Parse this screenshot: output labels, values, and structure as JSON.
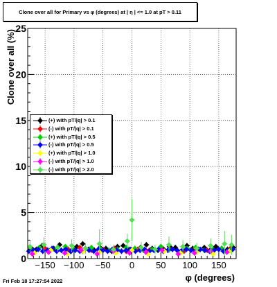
{
  "title": "Clone  over all for Primary vs φ (degrees) at |  η | <= 1.0 at pT > 0.11",
  "timestamp": "Fri Feb 18 17:27:54 2022",
  "chart_data": {
    "type": "scatter",
    "title": "Clone  over all for Primary vs φ (degrees) at |  η | <= 1.0 at pT > 0.11",
    "xlabel": "φ (degrees)",
    "ylabel": "Clone  over all (%)",
    "xlim": [
      -180,
      180
    ],
    "ylim": [
      0,
      25
    ],
    "x_ticks": [
      -150,
      -100,
      -50,
      0,
      50,
      100,
      150
    ],
    "x_tick_labels": [
      "−150",
      "−100",
      "−50",
      "0",
      "50",
      "100",
      "150"
    ],
    "y_ticks": [
      0,
      5,
      10,
      15,
      20,
      25
    ],
    "y_tick_labels": [
      "0",
      "5",
      "10",
      "15",
      "20",
      "25"
    ],
    "grid": true,
    "legend_position": "left-middle",
    "series": [
      {
        "name": "(+) with pT/|q| > 0.1",
        "color": "#000000",
        "x": [
          -175,
          -165,
          -155,
          -145,
          -135,
          -125,
          -115,
          -105,
          -95,
          -85,
          -75,
          -65,
          -55,
          -45,
          -35,
          -25,
          -15,
          -5,
          5,
          15,
          25,
          35,
          45,
          55,
          65,
          75,
          85,
          95,
          105,
          115,
          125,
          135,
          145,
          155,
          165,
          175
        ],
        "y": [
          1.2,
          1.0,
          1.4,
          0.9,
          1.1,
          1.5,
          1.0,
          0.8,
          1.3,
          1.6,
          1.0,
          0.9,
          1.2,
          1.1,
          0.8,
          1.3,
          1.4,
          1.0,
          0.9,
          1.2,
          1.5,
          1.1,
          0.9,
          1.0,
          1.3,
          1.2,
          0.8,
          1.4,
          1.1,
          1.0,
          1.2,
          0.9,
          1.3,
          1.1,
          1.0,
          1.2
        ]
      },
      {
        "name": "(-) with pT/|q| > 0.1",
        "color": "#ff0000",
        "x": [
          -170,
          -150,
          -130,
          -110,
          -90,
          -70,
          -50,
          -30,
          -10,
          10,
          30,
          50,
          70,
          90,
          110,
          130,
          150,
          170
        ],
        "y": [
          0.9,
          1.1,
          0.8,
          1.0,
          1.2,
          0.9,
          1.0,
          1.1,
          0.8,
          1.0,
          0.9,
          1.2,
          1.0,
          0.8,
          1.1,
          0.9,
          1.0,
          1.1
        ]
      },
      {
        "name": "(+) with pT/|q| > 0.5",
        "color": "#00cc00",
        "x": [
          -175,
          -160,
          -145,
          -130,
          -115,
          -100,
          -85,
          -70,
          -55,
          -40,
          -25,
          -10,
          5,
          20,
          35,
          50,
          65,
          80,
          95,
          110,
          125,
          140,
          155,
          170
        ],
        "y": [
          1.0,
          1.2,
          0.9,
          1.1,
          1.3,
          1.0,
          0.8,
          1.2,
          1.1,
          0.9,
          1.0,
          1.2,
          1.1,
          0.9,
          1.0,
          1.3,
          1.0,
          0.8,
          1.1,
          1.2,
          0.9,
          1.0,
          1.1,
          0.9
        ]
      },
      {
        "name": "(-) with pT/|q| > 0.5",
        "color": "#0000ff",
        "x": [
          -178,
          -170,
          -162,
          -154,
          -146,
          -138,
          -130,
          -122,
          -114,
          -106,
          -98,
          -90,
          -82,
          -74,
          -66,
          -58,
          -50,
          -42,
          -34,
          -26,
          -18,
          -10,
          -2,
          6,
          14,
          22,
          30,
          38,
          46,
          54,
          62,
          70,
          78,
          86,
          94,
          102,
          110,
          118,
          126,
          134,
          142,
          150,
          158,
          166,
          174
        ],
        "y": [
          0.8,
          0.9,
          1.0,
          0.8,
          0.9,
          1.1,
          0.8,
          0.9,
          1.0,
          0.8,
          0.9,
          0.8,
          1.0,
          0.9,
          0.8,
          1.0,
          0.9,
          0.8,
          1.0,
          0.9,
          0.8,
          0.9,
          1.0,
          0.8,
          0.9,
          1.0,
          0.8,
          0.9,
          1.0,
          0.8,
          0.9,
          1.0,
          0.9,
          0.8,
          1.0,
          0.9,
          0.8,
          1.0,
          0.9,
          0.8,
          0.9,
          1.0,
          0.8,
          0.9,
          1.0
        ]
      },
      {
        "name": "(+) with pT/|q| > 1.0",
        "color": "#ffff00",
        "x": [
          -168,
          -140,
          -112,
          -84,
          -56,
          -28,
          0,
          28,
          56,
          84,
          112,
          140,
          168
        ],
        "y": [
          0.6,
          0.9,
          0.5,
          0.8,
          0.7,
          0.6,
          0.9,
          0.5,
          0.8,
          0.6,
          0.7,
          0.5,
          0.8
        ]
      },
      {
        "name": "(-) with pT/|q| > 1.0",
        "color": "#ff00ff",
        "x": [
          -172,
          -144,
          -116,
          -88,
          -60,
          -32,
          -4,
          24,
          52,
          80,
          108,
          136,
          164
        ],
        "y": [
          0.5,
          0.7,
          0.6,
          0.9,
          0.5,
          0.8,
          0.6,
          0.7,
          0.9,
          0.5,
          0.6,
          0.8,
          0.7
        ]
      },
      {
        "name": "(-) with pT/|q| > 2.0",
        "color": "#55dd55",
        "x": [
          -176,
          -152,
          -128,
          -104,
          -80,
          -56,
          -32,
          -8,
          0,
          16,
          40,
          64,
          88,
          112,
          136,
          160,
          172
        ],
        "y": [
          1.3,
          1.5,
          1.2,
          1.4,
          1.1,
          1.6,
          1.0,
          1.9,
          4.2,
          1.2,
          1.0,
          1.5,
          1.3,
          1.1,
          1.4,
          1.6,
          1.5
        ],
        "yerr": [
          0.6,
          0.8,
          0.5,
          0.7,
          0.6,
          1.6,
          0.5,
          0.8,
          2.3,
          0.6,
          0.5,
          0.9,
          0.7,
          0.6,
          0.8,
          1.4,
          1.1
        ]
      }
    ]
  }
}
